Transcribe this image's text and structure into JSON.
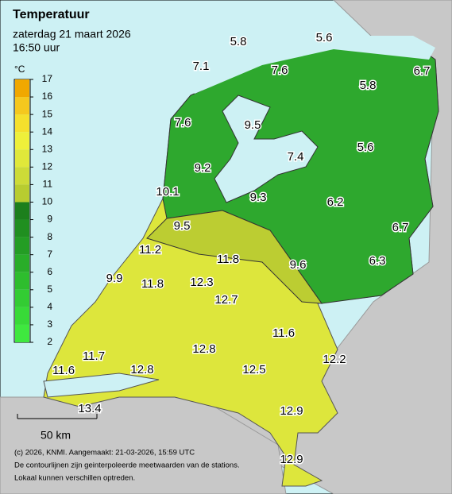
{
  "header": {
    "title": "Temperatuur",
    "date": "zaterdag 21 maart 2026",
    "time": "16:50 uur"
  },
  "legend": {
    "unit": "°C",
    "ticks": [
      2,
      3,
      4,
      5,
      6,
      7,
      8,
      9,
      10,
      11,
      12,
      13,
      14,
      15,
      16,
      17
    ],
    "colors": [
      "#3fe83f",
      "#38da38",
      "#33cc33",
      "#2ebd2e",
      "#29ad29",
      "#249d24",
      "#208f20",
      "#1c7f1c",
      "#b8cc30",
      "#cddb38",
      "#e0e83a",
      "#eef03a",
      "#f5e02c",
      "#f5c81e",
      "#f0a800"
    ]
  },
  "stations": [
    5.8,
    5.6,
    7.1,
    7.6,
    5.8,
    6.7,
    7.6,
    9.5,
    5.6,
    7.4,
    9.2,
    10.1,
    9.3,
    6.2,
    6.7,
    9.5,
    11.2,
    11.8,
    9.6,
    6.3,
    9.9,
    11.8,
    12.3,
    12.7,
    11.6,
    11.7,
    12.8,
    12.2,
    11.6,
    12.8,
    12.5,
    13.4,
    12.9,
    12.9
  ],
  "scale_bar": "50 km",
  "footer": [
    "(c) 2026, KNMI. Aangemaakt: 21-03-2026, 15:59 UTC",
    "De contourlijnen zijn geinterpoleerde meetwaarden van de stations.",
    "Lokaal kunnen verschillen optreden."
  ]
}
